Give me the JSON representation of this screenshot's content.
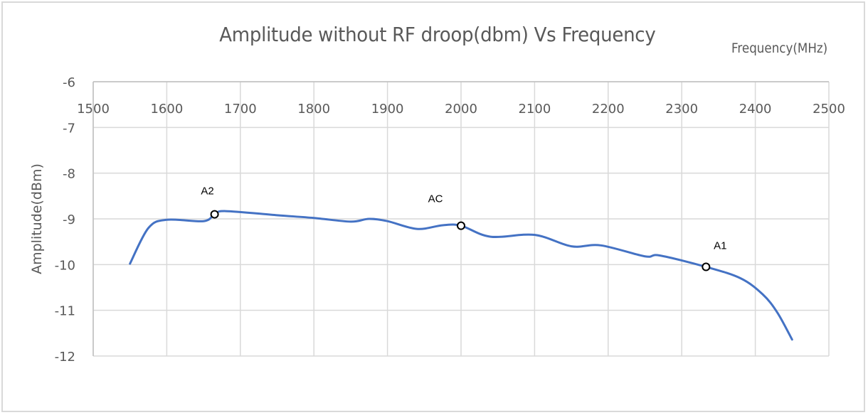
{
  "chart_data": {
    "type": "line",
    "title": "Amplitude without RF droop(dbm) Vs Frequency",
    "xlabel": "Frequency(MHz)",
    "ylabel": "Amplitude(dBm)",
    "xlim": [
      1500,
      2500
    ],
    "ylim": [
      -12,
      -6
    ],
    "x_ticks": [
      1500,
      1600,
      1700,
      1800,
      1900,
      2000,
      2100,
      2200,
      2300,
      2400,
      2500
    ],
    "y_ticks": [
      -6,
      -7,
      -8,
      -9,
      -10,
      -11,
      -12
    ],
    "x_axis_position": "top",
    "grid": true,
    "legend": null,
    "line_color": "#4472c4",
    "series": [
      {
        "name": "Amplitude",
        "x": [
          1550,
          1575,
          1600,
          1650,
          1665,
          1680,
          1750,
          1800,
          1850,
          1875,
          1900,
          1940,
          1975,
          2000,
          2040,
          2100,
          2150,
          2190,
          2250,
          2270,
          2333,
          2380,
          2410,
          2430,
          2450
        ],
        "y": [
          -9.98,
          -9.2,
          -9.02,
          -9.05,
          -8.9,
          -8.83,
          -8.92,
          -8.98,
          -9.06,
          -9.0,
          -9.05,
          -9.22,
          -9.14,
          -9.15,
          -9.39,
          -9.35,
          -9.6,
          -9.58,
          -9.82,
          -9.8,
          -10.05,
          -10.3,
          -10.65,
          -11.05,
          -11.64
        ]
      }
    ],
    "annotations": [
      {
        "label": "A2",
        "x": 1665,
        "y": -8.9
      },
      {
        "label": "AC",
        "x": 2000,
        "y": -9.15
      },
      {
        "label": "A1",
        "x": 2333,
        "y": -10.05
      }
    ]
  }
}
